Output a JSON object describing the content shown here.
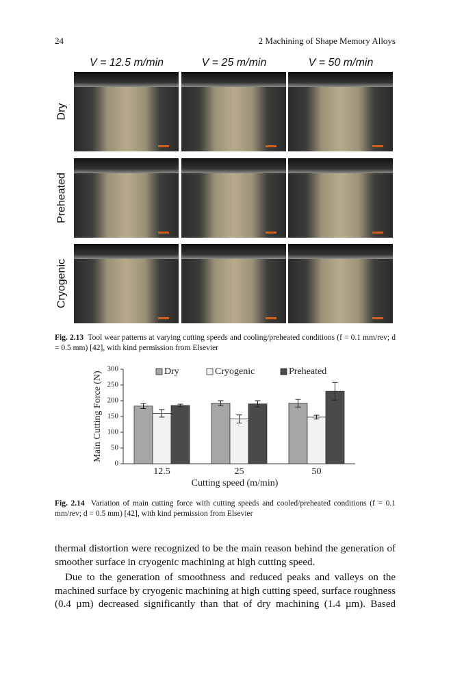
{
  "header": {
    "page_number": "24",
    "running_title": "2 Machining of Shape Memory Alloys"
  },
  "figure_2_13": {
    "column_labels": [
      "V = 12.5 m/min",
      "V = 25 m/min",
      "V = 50 m/min"
    ],
    "row_labels": [
      "Dry",
      "Preheated",
      "Cryogenic"
    ],
    "caption_label": "Fig. 2.13",
    "caption_text": "Tool wear patterns at varying cutting speeds and cooling/preheated conditions (f = 0.1 mm/rev; d = 0.5 mm) [42], with kind permission from Elsevier"
  },
  "chart_data": {
    "type": "bar",
    "y_label": "Main Cutting Force (N)",
    "x_label": "Cutting speed (m/min)",
    "categories": [
      "12.5",
      "25",
      "50"
    ],
    "series": [
      {
        "name": "Dry",
        "color": "#a6a6a6",
        "values": [
          183,
          192,
          192
        ],
        "errors": [
          8,
          8,
          12
        ]
      },
      {
        "name": "Cryogenic",
        "color": "#f2f2f2",
        "values": [
          160,
          142,
          148
        ],
        "errors": [
          12,
          13,
          6
        ]
      },
      {
        "name": "Preheated",
        "color": "#4a4a4a",
        "values": [
          185,
          190,
          230
        ],
        "errors": [
          4,
          10,
          28
        ]
      }
    ],
    "ylim": [
      0,
      300
    ],
    "yticks": [
      0,
      50,
      100,
      150,
      200,
      250,
      300
    ],
    "grid": false,
    "legend": "top"
  },
  "figure_2_14": {
    "caption_label": "Fig. 2.14",
    "caption_text": "Variation of main cutting force with cutting speeds and cooled/preheated conditions (f = 0.1 mm/rev; d = 0.5 mm) [42], with kind permission from Elsevier"
  },
  "body": {
    "paragraphs": [
      "thermal distortion were recognized to be the main reason behind the generation of smoother surface in cryogenic machining at high cutting speed.",
      "Due to the generation of smoothness and reduced peaks and valleys on the machined surface by cryogenic machining at high cutting speed, surface roughness (0.4 µm) decreased significantly than that of dry machining (1.4 µm). Based"
    ]
  }
}
